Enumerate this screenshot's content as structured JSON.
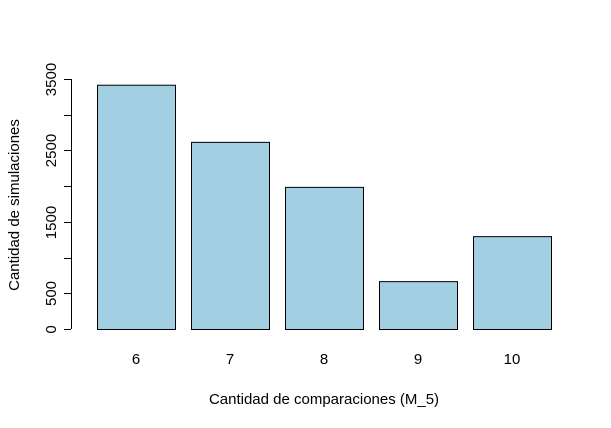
{
  "chart_data": {
    "type": "bar",
    "title": "",
    "xlabel": "Cantidad de comparaciones (M_5)",
    "ylabel": "Cantidad de simulaciones",
    "categories": [
      "6",
      "7",
      "8",
      "9",
      "10"
    ],
    "values": [
      3420,
      2620,
      1990,
      670,
      1300
    ],
    "ylim": [
      0,
      3500
    ],
    "yticks": [
      0,
      500,
      1000,
      1500,
      2000,
      2500,
      3000,
      3500
    ],
    "ytick_labels": [
      "0",
      "500",
      "",
      "1500",
      "",
      "2500",
      "",
      "3500"
    ],
    "bar_color": "#a2d0e2",
    "bar_border": "#000000",
    "grid": false,
    "legend": "none"
  }
}
